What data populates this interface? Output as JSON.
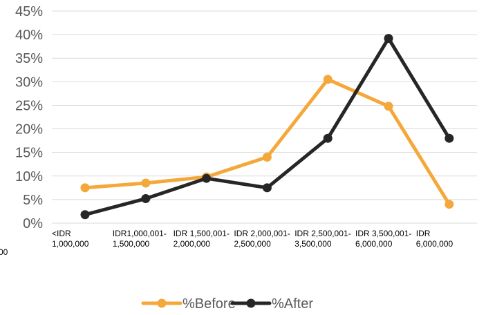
{
  "chart_data": {
    "type": "line",
    "title": "",
    "xlabel": "",
    "ylabel": "",
    "categories": [
      [
        "<IDR",
        "1,000,000"
      ],
      [
        "IDR1,000,001-",
        "1,500,000"
      ],
      [
        "IDR 1,500,001-",
        "2,000,000"
      ],
      [
        "IDR 2,000,001-",
        "2,500,000"
      ],
      [
        "IDR 2,500,001-",
        "3,500,000"
      ],
      [
        "IDR 3,500,001-",
        "6,000,000"
      ],
      [
        "IDR",
        "6,000,000"
      ]
    ],
    "y_ticks": [
      "0%",
      "5%",
      "10%",
      "15%",
      "20%",
      "25%",
      "30%",
      "35%",
      "40%",
      "45%"
    ],
    "ylim": [
      0,
      45
    ],
    "grid": true,
    "legend_position": "bottom",
    "stray_label": "00",
    "series": [
      {
        "name": "%Before",
        "color": "#f5a83a",
        "values": [
          7.5,
          8.5,
          9.8,
          14.0,
          30.5,
          24.8,
          4.0
        ]
      },
      {
        "name": "%After",
        "color": "#262626",
        "values": [
          1.8,
          5.2,
          9.5,
          7.5,
          18.0,
          39.2,
          18.0
        ]
      }
    ]
  }
}
